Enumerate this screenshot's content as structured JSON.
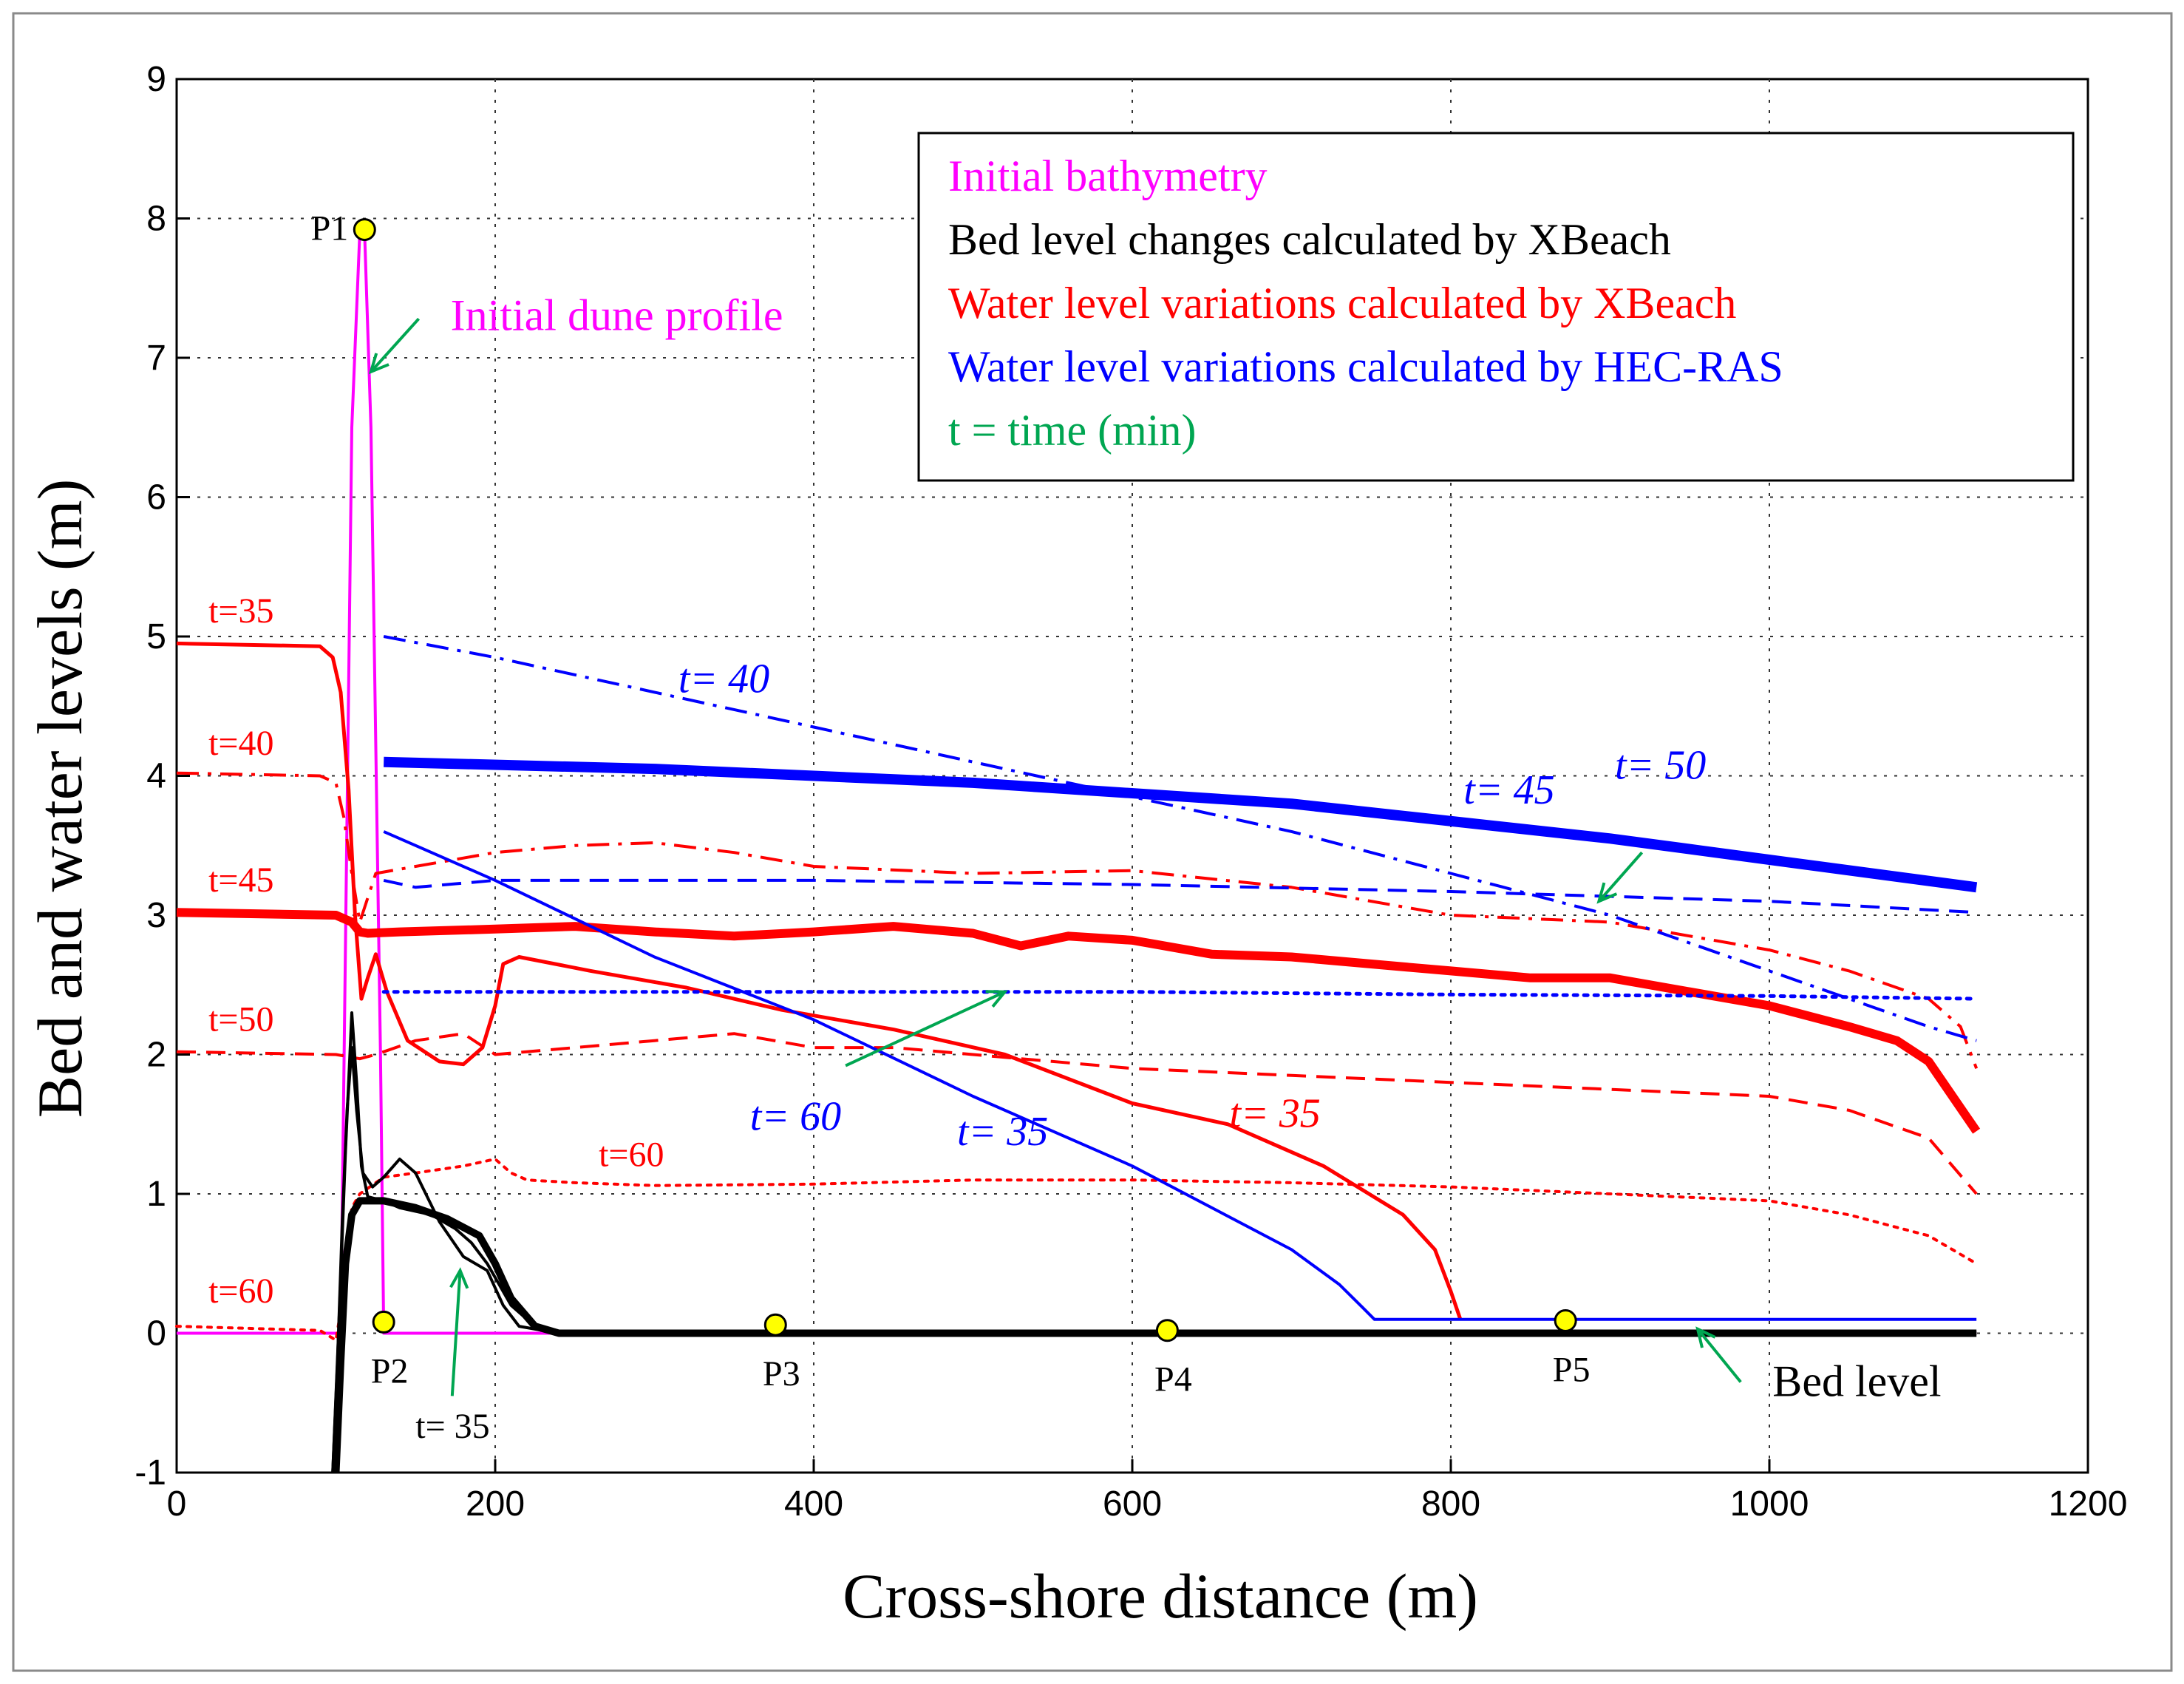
{
  "chart_data": {
    "type": "line",
    "xlabel": "Cross-shore distance (m)",
    "ylabel": "Bed and water levels (m)",
    "xlim": [
      0,
      1200
    ],
    "ylim": [
      -1,
      9
    ],
    "xticks": [
      0,
      200,
      400,
      600,
      800,
      1000,
      1200
    ],
    "yticks": [
      -1,
      0,
      1,
      2,
      3,
      4,
      5,
      6,
      7,
      8,
      9
    ],
    "grid": true,
    "legend_position": "top-right",
    "legend": [
      {
        "label": "Initial bathymetry",
        "color": "#ff00ff"
      },
      {
        "label": "Bed level changes calculated by XBeach",
        "color": "#000000"
      },
      {
        "label": "Water level variations calculated by XBeach",
        "color": "#ff0000"
      },
      {
        "label": "Water level variations calculated by HEC-RAS",
        "color": "#0000ff"
      },
      {
        "label": "t = time (min)",
        "color": "#00a651"
      }
    ],
    "series": [
      {
        "name": "Initial bathymetry",
        "color": "#ff00ff",
        "style": "solid",
        "width": 4,
        "x": [
          0,
          103,
          110,
          115,
          118,
          122,
          128,
          130,
          1130
        ],
        "y": [
          0,
          0,
          6.5,
          7.9,
          7.9,
          6.5,
          2,
          0,
          0
        ]
      },
      {
        "name": "XBeach water level t=35",
        "color": "#ff0000",
        "style": "solid",
        "width": 5,
        "x": [
          0,
          90,
          98,
          103,
          108,
          112,
          116,
          120,
          125,
          132,
          145,
          165,
          180,
          192,
          200,
          205,
          215,
          260,
          320,
          380,
          450,
          520,
          600,
          660,
          720,
          770,
          790,
          800,
          806
        ],
        "y": [
          4.95,
          4.93,
          4.85,
          4.6,
          3.9,
          3.0,
          2.4,
          2.55,
          2.72,
          2.45,
          2.1,
          1.95,
          1.93,
          2.05,
          2.35,
          2.65,
          2.7,
          2.6,
          2.48,
          2.32,
          2.18,
          2.0,
          1.65,
          1.5,
          1.2,
          0.85,
          0.6,
          0.3,
          0.1
        ]
      },
      {
        "name": "XBeach water level t=40",
        "color": "#ff0000",
        "style": "dashdot",
        "width": 4,
        "x": [
          0,
          90,
          100,
          105,
          110,
          115,
          125,
          150,
          200,
          250,
          300,
          350,
          400,
          500,
          600,
          700,
          800,
          900,
          1000,
          1050,
          1100,
          1120,
          1130
        ],
        "y": [
          4.02,
          4.0,
          3.95,
          3.7,
          3.3,
          2.95,
          3.3,
          3.35,
          3.45,
          3.5,
          3.52,
          3.45,
          3.35,
          3.3,
          3.32,
          3.2,
          3.0,
          2.95,
          2.75,
          2.6,
          2.4,
          2.2,
          1.9
        ]
      },
      {
        "name": "XBeach water level t=45",
        "color": "#ff0000",
        "style": "solid",
        "width": 12,
        "x": [
          0,
          100,
          110,
          115,
          120,
          140,
          200,
          250,
          300,
          350,
          400,
          450,
          500,
          530,
          560,
          600,
          650,
          700,
          750,
          800,
          850,
          900,
          950,
          1000,
          1050,
          1080,
          1100,
          1115,
          1130
        ],
        "y": [
          3.02,
          3.0,
          2.95,
          2.88,
          2.87,
          2.88,
          2.9,
          2.92,
          2.88,
          2.85,
          2.88,
          2.92,
          2.87,
          2.78,
          2.85,
          2.82,
          2.72,
          2.7,
          2.65,
          2.6,
          2.55,
          2.55,
          2.45,
          2.35,
          2.2,
          2.1,
          1.95,
          1.7,
          1.45
        ]
      },
      {
        "name": "XBeach water level t=50",
        "color": "#ff0000",
        "style": "dashed",
        "width": 4,
        "x": [
          0,
          100,
          115,
          125,
          150,
          180,
          200,
          250,
          300,
          350,
          400,
          450,
          500,
          600,
          700,
          800,
          900,
          1000,
          1050,
          1100,
          1130
        ],
        "y": [
          2.02,
          2.0,
          1.97,
          2.0,
          2.1,
          2.15,
          2.0,
          2.05,
          2.1,
          2.15,
          2.05,
          2.05,
          2.0,
          1.9,
          1.85,
          1.8,
          1.75,
          1.7,
          1.6,
          1.4,
          1.0
        ]
      },
      {
        "name": "XBeach water level t=60",
        "color": "#ff0000",
        "style": "dotted",
        "width": 4,
        "x": [
          0,
          90,
          100,
          105,
          110,
          115,
          130,
          150,
          180,
          200,
          210,
          220,
          250,
          300,
          400,
          500,
          600,
          700,
          800,
          900,
          1000,
          1050,
          1100,
          1130
        ],
        "y": [
          0.05,
          0.02,
          -0.05,
          0.3,
          0.9,
          1.0,
          1.12,
          1.15,
          1.2,
          1.25,
          1.15,
          1.1,
          1.08,
          1.06,
          1.07,
          1.1,
          1.1,
          1.08,
          1.05,
          1.0,
          0.95,
          0.85,
          0.7,
          0.5
        ]
      },
      {
        "name": "HEC-RAS water level t=35",
        "color": "#0000ff",
        "style": "solid",
        "width": 4,
        "x": [
          130,
          200,
          300,
          400,
          500,
          600,
          700,
          730,
          745,
          752,
          760,
          900,
          1130
        ],
        "y": [
          3.6,
          3.25,
          2.7,
          2.25,
          1.7,
          1.2,
          0.6,
          0.35,
          0.18,
          0.1,
          0.1,
          0.1,
          0.1
        ]
      },
      {
        "name": "HEC-RAS water level t=40",
        "color": "#0000ff",
        "style": "dashdot",
        "width": 4,
        "x": [
          130,
          200,
          300,
          400,
          500,
          600,
          700,
          800,
          900,
          1000,
          1100,
          1130
        ],
        "y": [
          5.0,
          4.85,
          4.6,
          4.35,
          4.1,
          3.85,
          3.6,
          3.3,
          3.0,
          2.6,
          2.2,
          2.1
        ]
      },
      {
        "name": "HEC-RAS water level t=45",
        "color": "#0000ff",
        "style": "solid",
        "width": 14,
        "x": [
          130,
          300,
          500,
          700,
          900,
          1130
        ],
        "y": [
          4.1,
          4.05,
          3.95,
          3.8,
          3.55,
          3.2
        ]
      },
      {
        "name": "HEC-RAS water level t=50",
        "color": "#0000ff",
        "style": "dashed",
        "width": 4,
        "x": [
          130,
          150,
          200,
          400,
          600,
          800,
          1000,
          1130
        ],
        "y": [
          3.25,
          3.2,
          3.25,
          3.25,
          3.22,
          3.17,
          3.1,
          3.02
        ]
      },
      {
        "name": "HEC-RAS water level t=60",
        "color": "#0000ff",
        "style": "dotted",
        "width": 5,
        "x": [
          130,
          400,
          600,
          800,
          1000,
          1130
        ],
        "y": [
          2.45,
          2.45,
          2.45,
          2.43,
          2.42,
          2.4
        ]
      },
      {
        "name": "XBeach bed level t=35",
        "color": "#000000",
        "style": "solid",
        "width": 4,
        "x": [
          98,
          101,
          104,
          107,
          110,
          113,
          117,
          123,
          130,
          140,
          150,
          165,
          180,
          195,
          205,
          215,
          240,
          1130
        ],
        "y": [
          -1.0,
          -0.2,
          0.8,
          1.6,
          2.05,
          1.6,
          1.15,
          1.05,
          1.12,
          1.25,
          1.15,
          0.8,
          0.55,
          0.45,
          0.2,
          0.05,
          0.0,
          0.0
        ]
      },
      {
        "name": "XBeach bed level t=40",
        "color": "#000000",
        "style": "solid",
        "width": 4,
        "x": [
          98,
          102,
          106,
          110,
          113,
          116,
          120,
          130,
          140,
          160,
          175,
          185,
          195,
          210,
          225,
          240,
          1130
        ],
        "y": [
          -1.0,
          0.1,
          1.3,
          2.3,
          1.8,
          1.2,
          0.98,
          0.95,
          0.9,
          0.85,
          0.75,
          0.65,
          0.5,
          0.2,
          0.05,
          0.0,
          0.0
        ]
      },
      {
        "name": "XBeach bed level (final)",
        "color": "#000000",
        "style": "solid",
        "width": 10,
        "x": [
          100,
          103,
          106,
          110,
          115,
          130,
          150,
          170,
          190,
          200,
          210,
          225,
          240,
          1130
        ],
        "y": [
          -1.0,
          -0.2,
          0.5,
          0.85,
          0.95,
          0.95,
          0.9,
          0.82,
          0.7,
          0.5,
          0.25,
          0.05,
          0.0,
          0.0
        ]
      }
    ],
    "points": [
      {
        "label": "P1",
        "x": 118,
        "y": 7.92,
        "anchor": "left"
      },
      {
        "label": "P2",
        "x": 130,
        "y": 0.08,
        "anchor": "below"
      },
      {
        "label": "P3",
        "x": 376,
        "y": 0.06,
        "anchor": "below"
      },
      {
        "label": "P4",
        "x": 622,
        "y": 0.02,
        "anchor": "below"
      },
      {
        "label": "P5",
        "x": 872,
        "y": 0.09,
        "anchor": "below"
      }
    ],
    "annotations": [
      {
        "text": "Initial dune profile",
        "color": "#ff00ff",
        "italic": false,
        "x": 172,
        "y": 7.2
      },
      {
        "text": "t=35",
        "color": "#ff0000",
        "italic": false,
        "x": 20,
        "y": 5.1
      },
      {
        "text": "t=40",
        "color": "#ff0000",
        "italic": false,
        "x": 20,
        "y": 4.15
      },
      {
        "text": "t=45",
        "color": "#ff0000",
        "italic": false,
        "x": 20,
        "y": 3.17
      },
      {
        "text": "t=50",
        "color": "#ff0000",
        "italic": false,
        "x": 20,
        "y": 2.17
      },
      {
        "text": "t=60",
        "color": "#ff0000",
        "italic": false,
        "x": 20,
        "y": 0.22
      },
      {
        "text": "t=60",
        "color": "#ff0000",
        "italic": false,
        "x": 265,
        "y": 1.2
      },
      {
        "text": "t= 40",
        "color": "#0000ff",
        "italic": true,
        "x": 315,
        "y": 4.6
      },
      {
        "text": "t= 45",
        "color": "#0000ff",
        "italic": true,
        "x": 808,
        "y": 3.8
      },
      {
        "text": "t= 50",
        "color": "#0000ff",
        "italic": true,
        "x": 903,
        "y": 3.98
      },
      {
        "text": "t= 60",
        "color": "#0000ff",
        "italic": true,
        "x": 360,
        "y": 1.46
      },
      {
        "text": "t= 35",
        "color": "#0000ff",
        "italic": true,
        "x": 490,
        "y": 1.35
      },
      {
        "text": "t= 35",
        "color": "#ff0000",
        "italic": true,
        "x": 661,
        "y": 1.48
      },
      {
        "text": "t= 35",
        "color": "#000000",
        "italic": false,
        "x": 150,
        "y": -0.75
      },
      {
        "text": "Bed level",
        "color": "#000000",
        "italic": false,
        "x": 1002,
        "y": -0.45
      }
    ]
  }
}
